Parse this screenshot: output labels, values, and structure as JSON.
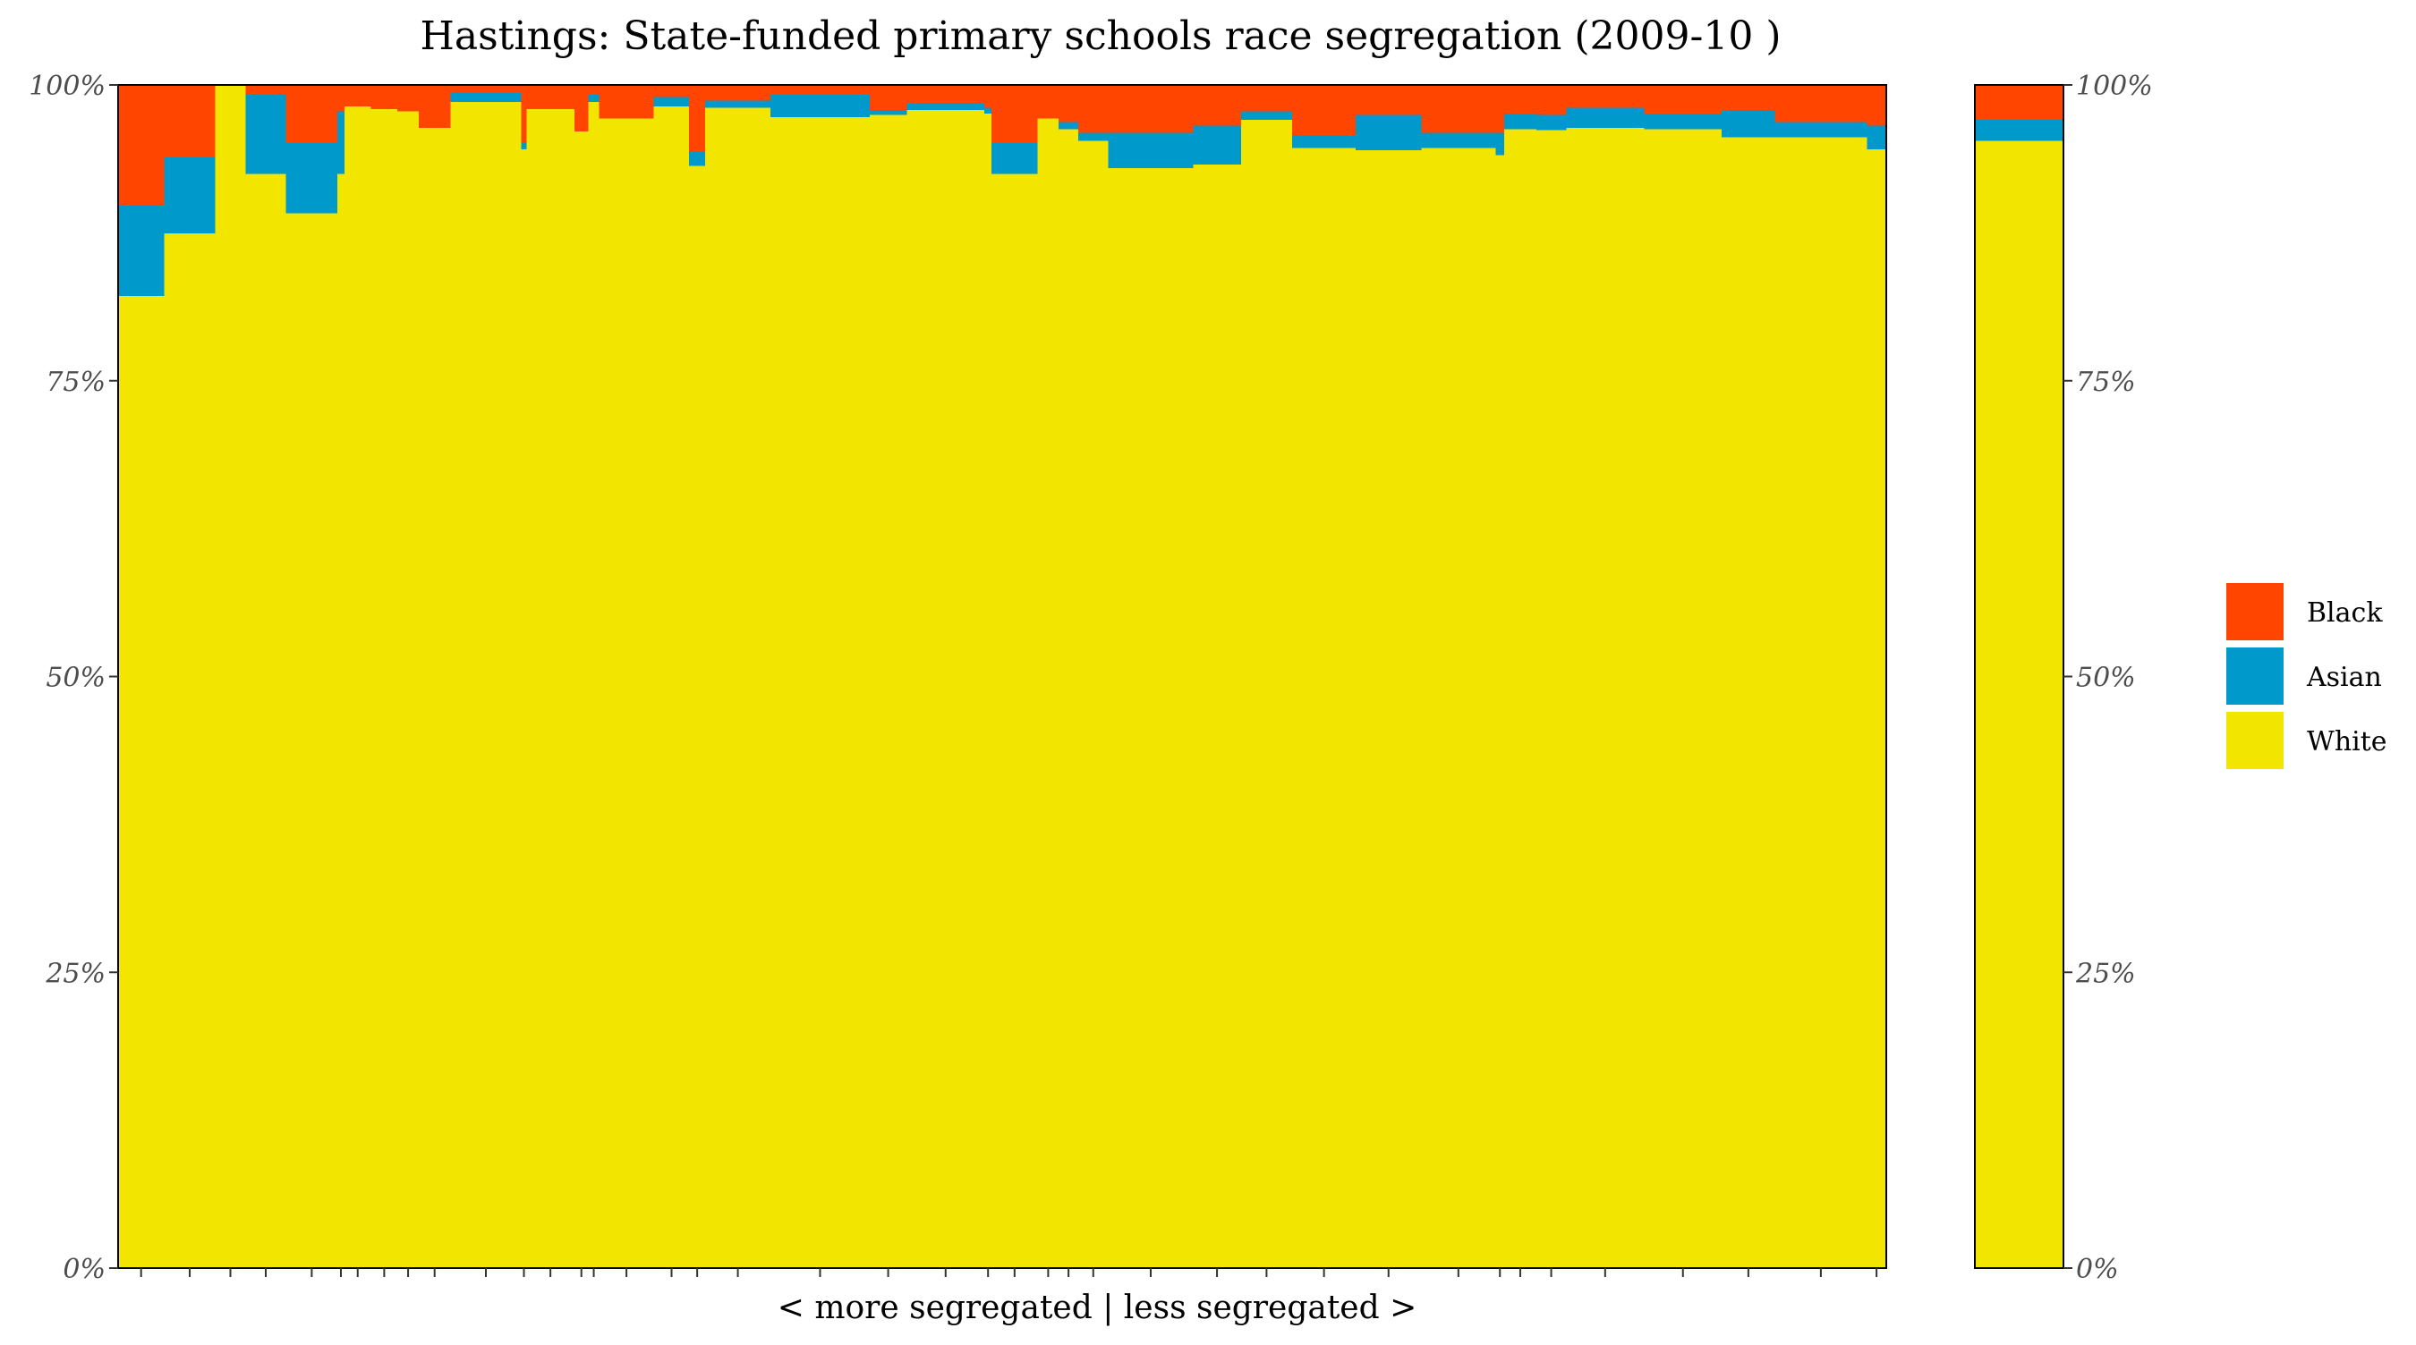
{
  "chart_data": {
    "type": "bar",
    "title": "Hastings: State-funded primary schools race segregation (2009-10 )",
    "xlabel": "< more segregated | less segregated >",
    "ylabel": "",
    "ylim": [
      0,
      100
    ],
    "y_ticks": [
      "0%",
      "25%",
      "50%",
      "75%",
      "100%"
    ],
    "y_tick_values": [
      0,
      25,
      50,
      75,
      100
    ],
    "legend_position": "right",
    "grid": false,
    "colors": {
      "Black": "#FF4500",
      "Asian": "#0099CC",
      "White": "#F2E500"
    },
    "legend": [
      {
        "name": "Black",
        "color": "#FF4500"
      },
      {
        "name": "Asian",
        "color": "#0099CC"
      },
      {
        "name": "White",
        "color": "#F2E500"
      }
    ],
    "stack_order": [
      "White",
      "Asian",
      "Black"
    ],
    "x_extent": [
      0,
      100
    ],
    "schools": [
      {
        "x0": 0.0,
        "x1": 2.6,
        "White": 82.2,
        "Asian": 7.7,
        "Black": 10.1
      },
      {
        "x0": 2.6,
        "x1": 5.5,
        "White": 87.5,
        "Asian": 6.4,
        "Black": 6.1
      },
      {
        "x0": 5.5,
        "x1": 7.2,
        "White": 100,
        "Asian": 0,
        "Black": 0
      },
      {
        "x0": 7.2,
        "x1": 9.5,
        "White": 92.5,
        "Asian": 6.7,
        "Black": 0.8
      },
      {
        "x0": 9.5,
        "x1": 12.4,
        "White": 89.2,
        "Asian": 5.9,
        "Black": 4.9
      },
      {
        "x0": 12.4,
        "x1": 12.8,
        "White": 92.5,
        "Asian": 5.3,
        "Black": 2.2
      },
      {
        "x0": 12.8,
        "x1": 14.3,
        "White": 98.2,
        "Asian": 0,
        "Black": 1.8
      },
      {
        "x0": 14.3,
        "x1": 15.8,
        "White": 98.0,
        "Asian": 0,
        "Black": 2.0
      },
      {
        "x0": 15.8,
        "x1": 17.0,
        "White": 97.8,
        "Asian": 0,
        "Black": 2.2
      },
      {
        "x0": 17.0,
        "x1": 18.8,
        "White": 96.4,
        "Asian": 0,
        "Black": 3.6
      },
      {
        "x0": 18.8,
        "x1": 22.8,
        "White": 98.6,
        "Asian": 0.8,
        "Black": 0.6
      },
      {
        "x0": 22.8,
        "x1": 23.1,
        "White": 94.6,
        "Asian": 0.6,
        "Black": 4.8
      },
      {
        "x0": 23.1,
        "x1": 25.8,
        "White": 98.0,
        "Asian": 0,
        "Black": 2.0
      },
      {
        "x0": 25.8,
        "x1": 26.6,
        "White": 96.1,
        "Asian": 0,
        "Black": 3.9
      },
      {
        "x0": 26.6,
        "x1": 27.2,
        "White": 98.6,
        "Asian": 0.6,
        "Black": 0.8
      },
      {
        "x0": 27.2,
        "x1": 30.3,
        "White": 97.2,
        "Asian": 0,
        "Black": 2.8
      },
      {
        "x0": 30.3,
        "x1": 32.3,
        "White": 98.2,
        "Asian": 0.8,
        "Black": 1.0
      },
      {
        "x0": 32.3,
        "x1": 33.2,
        "White": 93.2,
        "Asian": 1.2,
        "Black": 5.6
      },
      {
        "x0": 33.2,
        "x1": 36.9,
        "White": 98.1,
        "Asian": 0.6,
        "Black": 1.3
      },
      {
        "x0": 36.9,
        "x1": 42.5,
        "White": 97.3,
        "Asian": 1.9,
        "Black": 0.8
      },
      {
        "x0": 42.5,
        "x1": 44.6,
        "White": 97.5,
        "Asian": 0.4,
        "Black": 2.1
      },
      {
        "x0": 44.6,
        "x1": 49.0,
        "White": 97.9,
        "Asian": 0.6,
        "Black": 1.5
      },
      {
        "x0": 49.0,
        "x1": 49.4,
        "White": 97.6,
        "Asian": 0.5,
        "Black": 1.9
      },
      {
        "x0": 49.4,
        "x1": 52.0,
        "White": 92.5,
        "Asian": 2.6,
        "Black": 4.9
      },
      {
        "x0": 52.0,
        "x1": 53.2,
        "White": 97.2,
        "Asian": 0,
        "Black": 2.8
      },
      {
        "x0": 53.2,
        "x1": 54.3,
        "White": 96.3,
        "Asian": 0.6,
        "Black": 3.1
      },
      {
        "x0": 54.3,
        "x1": 56.0,
        "White": 95.3,
        "Asian": 0.7,
        "Black": 4.0
      },
      {
        "x0": 56.0,
        "x1": 60.8,
        "White": 93.0,
        "Asian": 3.0,
        "Black": 4.0
      },
      {
        "x0": 60.8,
        "x1": 63.5,
        "White": 93.3,
        "Asian": 3.3,
        "Black": 3.4
      },
      {
        "x0": 63.5,
        "x1": 66.4,
        "White": 97.1,
        "Asian": 0.7,
        "Black": 2.2
      },
      {
        "x0": 66.4,
        "x1": 70.0,
        "White": 94.7,
        "Asian": 1.1,
        "Black": 4.2
      },
      {
        "x0": 70.0,
        "x1": 73.7,
        "White": 94.5,
        "Asian": 3.0,
        "Black": 2.5
      },
      {
        "x0": 73.7,
        "x1": 77.9,
        "White": 94.7,
        "Asian": 1.3,
        "Black": 4.0
      },
      {
        "x0": 77.9,
        "x1": 78.4,
        "White": 94.1,
        "Asian": 1.9,
        "Black": 4.0
      },
      {
        "x0": 78.4,
        "x1": 80.2,
        "White": 96.3,
        "Asian": 1.3,
        "Black": 2.4
      },
      {
        "x0": 80.2,
        "x1": 81.9,
        "White": 96.2,
        "Asian": 1.3,
        "Black": 2.5
      },
      {
        "x0": 81.9,
        "x1": 86.3,
        "White": 96.4,
        "Asian": 1.7,
        "Black": 1.9
      },
      {
        "x0": 86.3,
        "x1": 90.7,
        "White": 96.3,
        "Asian": 1.3,
        "Black": 2.4
      },
      {
        "x0": 90.7,
        "x1": 93.7,
        "White": 95.6,
        "Asian": 2.3,
        "Black": 2.1
      },
      {
        "x0": 93.7,
        "x1": 98.9,
        "White": 95.6,
        "Asian": 1.3,
        "Black": 3.1
      },
      {
        "x0": 98.9,
        "x1": 100.0,
        "White": 94.6,
        "Asian": 2.0,
        "Black": 3.4
      }
    ],
    "overall": {
      "White": 95.3,
      "Asian": 1.8,
      "Black": 2.9
    }
  }
}
